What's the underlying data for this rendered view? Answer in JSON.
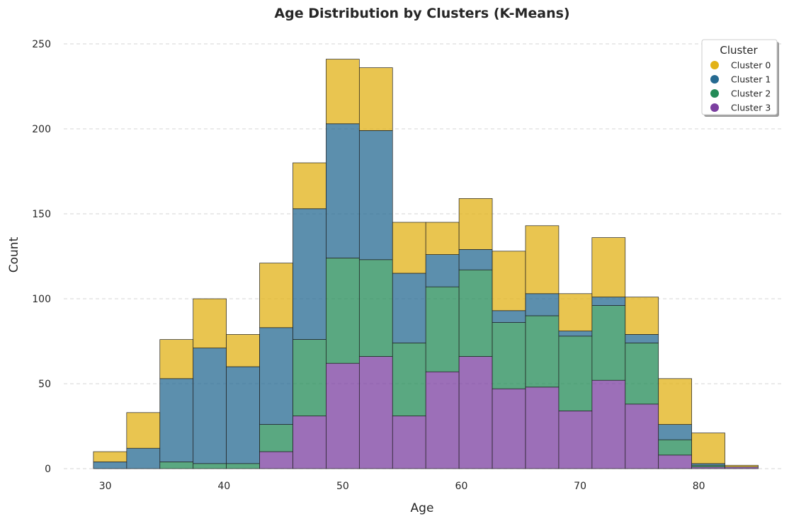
{
  "chart_data": {
    "type": "bar",
    "stacked": true,
    "title": "Age Distribution by Clusters (K-Means)",
    "xlabel": "Age",
    "ylabel": "Count",
    "bin_start": 29,
    "bin_width": 2.8,
    "xlim": [
      26.5,
      87
    ],
    "ylim": [
      0,
      255
    ],
    "xticks": [
      30,
      40,
      50,
      60,
      70,
      80
    ],
    "yticks": [
      0,
      50,
      100,
      150,
      200,
      250
    ],
    "grid": "y-dashed",
    "legend": {
      "title": "Cluster",
      "placement": "top-right"
    },
    "series": [
      {
        "name": "Cluster 3",
        "color": "#7b3fa0",
        "values": [
          0,
          0,
          0,
          0,
          0,
          10,
          31,
          62,
          66,
          31,
          57,
          66,
          47,
          48,
          34,
          52,
          38,
          8,
          1,
          1
        ]
      },
      {
        "name": "Cluster 2",
        "color": "#238b57",
        "values": [
          0,
          0,
          4,
          3,
          3,
          16,
          45,
          62,
          57,
          43,
          50,
          51,
          39,
          42,
          44,
          44,
          36,
          9,
          1,
          0
        ]
      },
      {
        "name": "Cluster 1",
        "color": "#266a91",
        "values": [
          4,
          12,
          49,
          68,
          57,
          57,
          77,
          79,
          76,
          41,
          19,
          12,
          7,
          13,
          3,
          5,
          5,
          9,
          1,
          0
        ]
      },
      {
        "name": "Cluster 0",
        "color": "#e2b216",
        "values": [
          6,
          21,
          23,
          29,
          19,
          38,
          27,
          38,
          37,
          30,
          19,
          30,
          35,
          40,
          22,
          35,
          22,
          27,
          18,
          1
        ]
      }
    ],
    "legend_order": [
      "Cluster 0",
      "Cluster 1",
      "Cluster 2",
      "Cluster 3"
    ]
  }
}
